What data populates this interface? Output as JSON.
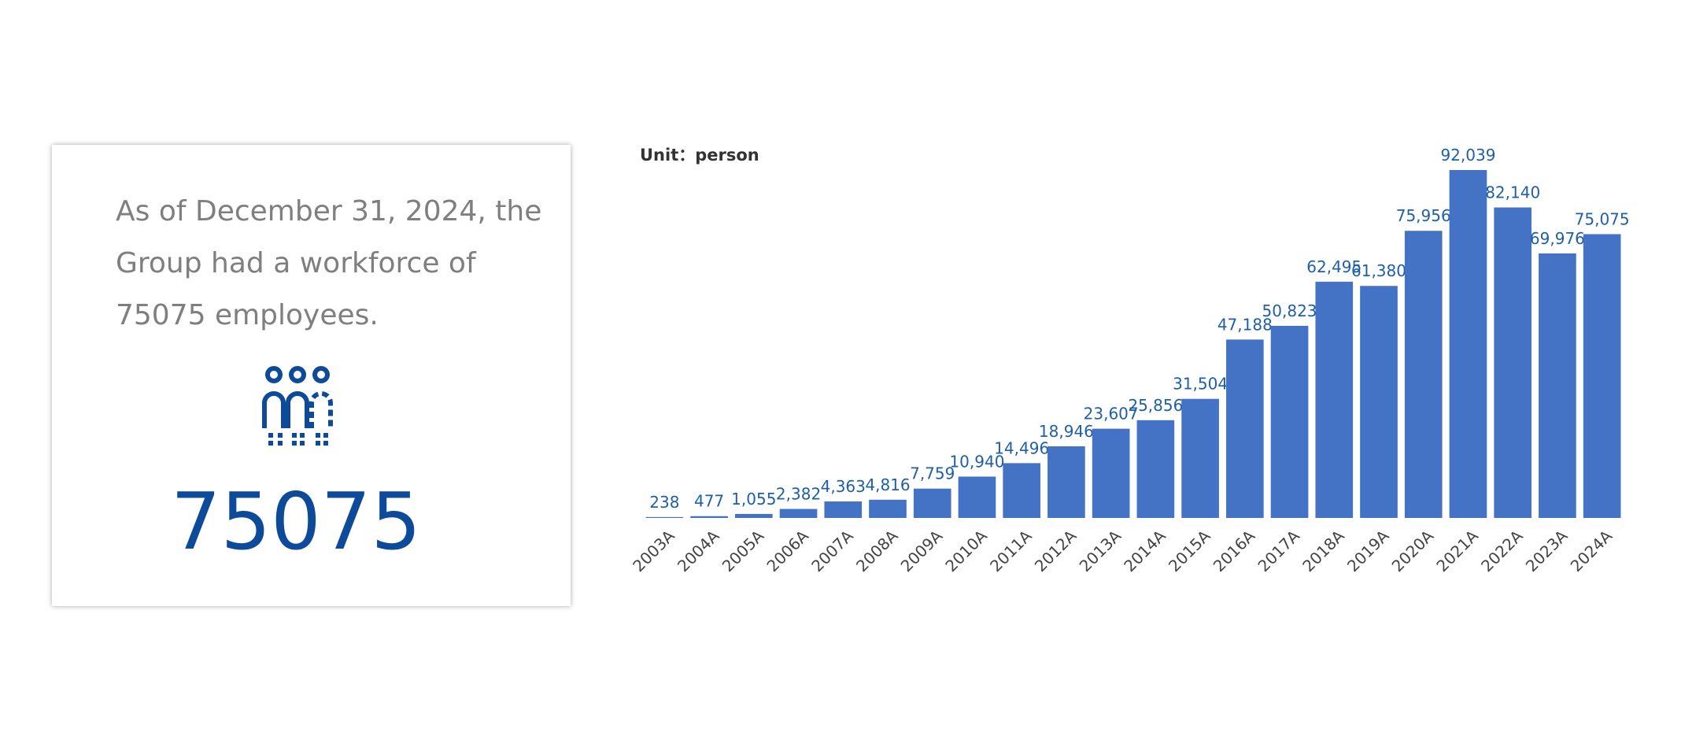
{
  "card": {
    "text": "As of December 31, 2024, the Group had a workforce of 75075 employees.",
    "number": "75075"
  },
  "chart_data": {
    "type": "bar",
    "unit": "Unit：person",
    "color": "#4472c4",
    "categories": [
      "2003A",
      "2004A",
      "2005A",
      "2006A",
      "2007A",
      "2008A",
      "2009A",
      "2010A",
      "2011A",
      "2012A",
      "2013A",
      "2014A",
      "2015A",
      "2016A",
      "2017A",
      "2018A",
      "2019A",
      "2020A",
      "2021A",
      "2022A",
      "2023A",
      "2024A"
    ],
    "values": [
      238,
      477,
      1055,
      2382,
      4363,
      4816,
      7759,
      10940,
      14496,
      18946,
      23607,
      25856,
      31504,
      47188,
      50823,
      62495,
      61380,
      75956,
      92039,
      82140,
      69976,
      75075
    ],
    "value_labels": [
      "238",
      "477",
      "1,055",
      "2,382",
      "4,363",
      "4,816",
      "7,759",
      "10,940",
      "14,496",
      "18,946",
      "23,607",
      "25,856",
      "31,504",
      "47,188",
      "50,823",
      "62,495",
      "61,380",
      "75,956",
      "92,039",
      "82,140",
      "69,976",
      "75,075"
    ]
  }
}
